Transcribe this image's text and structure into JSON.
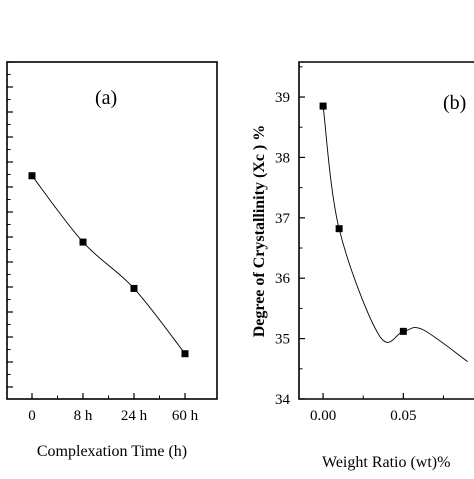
{
  "chart_data": [
    {
      "type": "scatter",
      "panel_label": "(a)",
      "xlabel": "Complexation Time (h)",
      "ylabel": "",
      "categories": [
        "0",
        "8 h",
        "24 h",
        "60 h"
      ],
      "values": [
        1.62,
        0.99,
        0.55,
        -0.07
      ],
      "ylim": [
        -0.5,
        2.7
      ],
      "yticks": [],
      "grid": false,
      "legend": "none",
      "curve": "smooth"
    },
    {
      "type": "scatter",
      "panel_label": "(b)",
      "xlabel": "Weight Ratio (wt)%",
      "ylabel": "Degree of Crystallinity (Xc ) %",
      "x": [
        0.0,
        0.01,
        0.05
      ],
      "y": [
        38.85,
        36.82,
        35.12
      ],
      "xlim": [
        -0.015,
        0.094
      ],
      "ylim": [
        34.0,
        39.58
      ],
      "xticks": [
        "0.00",
        "0.05"
      ],
      "yticks": [
        "34",
        "35",
        "36",
        "37",
        "38",
        "39"
      ],
      "grid": false,
      "legend": "none",
      "curve": "smooth"
    }
  ]
}
